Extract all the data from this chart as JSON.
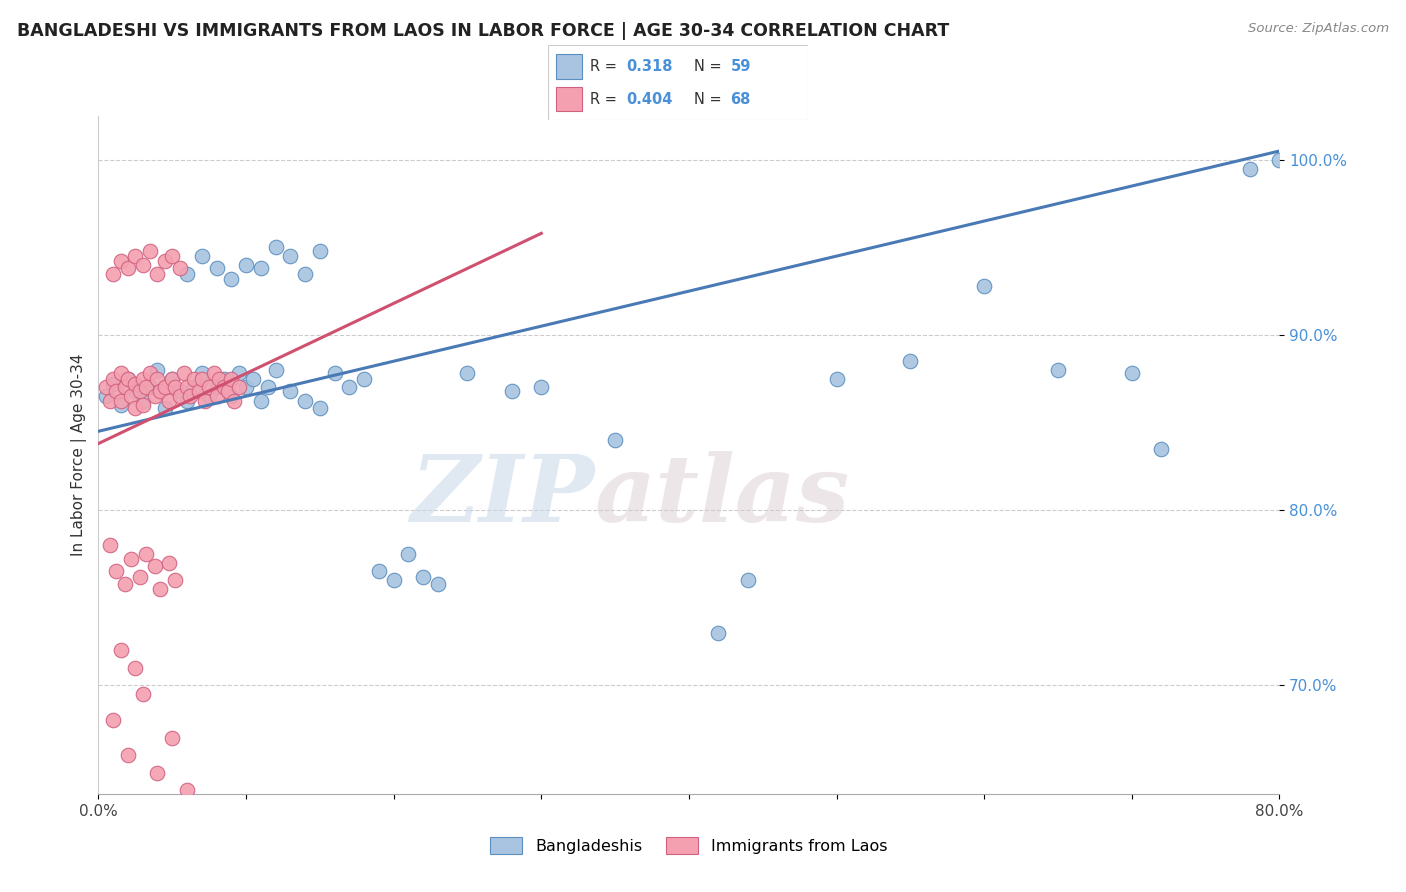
{
  "title": "BANGLADESHI VS IMMIGRANTS FROM LAOS IN LABOR FORCE | AGE 30-34 CORRELATION CHART",
  "source_text": "Source: ZipAtlas.com",
  "ylabel": "In Labor Force | Age 30-34",
  "xlim": [
    0.0,
    0.8
  ],
  "ylim": [
    0.638,
    1.025
  ],
  "xticks": [
    0.0,
    0.1,
    0.2,
    0.3,
    0.4,
    0.5,
    0.6,
    0.7,
    0.8
  ],
  "xticklabels": [
    "0.0%",
    "",
    "",
    "",
    "",
    "",
    "",
    "",
    "80.0%"
  ],
  "yticks": [
    0.7,
    0.8,
    0.9,
    1.0
  ],
  "yticklabels": [
    "70.0%",
    "80.0%",
    "90.0%",
    "100.0%"
  ],
  "R_blue": 0.318,
  "N_blue": 59,
  "R_pink": 0.404,
  "N_pink": 68,
  "blue_color": "#a8c4e0",
  "pink_color": "#f4a0b0",
  "blue_edge_color": "#5a8fc0",
  "pink_edge_color": "#d06080",
  "blue_line_color": "#4a7ab5",
  "pink_line_color": "#d05070",
  "legend_label_blue": "Bangladeshis",
  "legend_label_pink": "Immigrants from Laos",
  "watermark_zip": "ZIP",
  "watermark_atlas": "atlas",
  "blue_scatter_x": [
    0.005,
    0.01,
    0.015,
    0.02,
    0.025,
    0.03,
    0.035,
    0.04,
    0.045,
    0.05,
    0.055,
    0.06,
    0.065,
    0.07,
    0.075,
    0.08,
    0.085,
    0.09,
    0.095,
    0.1,
    0.105,
    0.11,
    0.115,
    0.12,
    0.13,
    0.14,
    0.15,
    0.16,
    0.17,
    0.18,
    0.19,
    0.2,
    0.21,
    0.22,
    0.23,
    0.25,
    0.28,
    0.3,
    0.35,
    0.42,
    0.44,
    0.5,
    0.55,
    0.6,
    0.65,
    0.7,
    0.72,
    0.78,
    0.8,
    0.06,
    0.07,
    0.08,
    0.09,
    0.1,
    0.11,
    0.12,
    0.13,
    0.14,
    0.15
  ],
  "blue_scatter_y": [
    0.865,
    0.872,
    0.86,
    0.875,
    0.868,
    0.862,
    0.87,
    0.88,
    0.858,
    0.875,
    0.868,
    0.862,
    0.87,
    0.878,
    0.865,
    0.87,
    0.875,
    0.865,
    0.878,
    0.87,
    0.875,
    0.862,
    0.87,
    0.88,
    0.868,
    0.862,
    0.858,
    0.878,
    0.87,
    0.875,
    0.765,
    0.76,
    0.775,
    0.762,
    0.758,
    0.878,
    0.868,
    0.87,
    0.84,
    0.73,
    0.76,
    0.875,
    0.885,
    0.928,
    0.88,
    0.878,
    0.835,
    0.995,
    1.0,
    0.935,
    0.945,
    0.938,
    0.932,
    0.94,
    0.938,
    0.95,
    0.945,
    0.935,
    0.948
  ],
  "pink_scatter_x": [
    0.005,
    0.008,
    0.01,
    0.012,
    0.015,
    0.015,
    0.018,
    0.02,
    0.022,
    0.025,
    0.025,
    0.028,
    0.03,
    0.03,
    0.032,
    0.035,
    0.038,
    0.04,
    0.042,
    0.045,
    0.048,
    0.05,
    0.052,
    0.055,
    0.058,
    0.06,
    0.062,
    0.065,
    0.068,
    0.07,
    0.072,
    0.075,
    0.078,
    0.08,
    0.082,
    0.085,
    0.088,
    0.09,
    0.092,
    0.095,
    0.01,
    0.015,
    0.02,
    0.025,
    0.03,
    0.035,
    0.04,
    0.045,
    0.05,
    0.055,
    0.008,
    0.012,
    0.018,
    0.022,
    0.028,
    0.032,
    0.038,
    0.042,
    0.048,
    0.052,
    0.01,
    0.02,
    0.03,
    0.04,
    0.05,
    0.06,
    0.015,
    0.025
  ],
  "pink_scatter_y": [
    0.87,
    0.862,
    0.875,
    0.868,
    0.862,
    0.878,
    0.87,
    0.875,
    0.865,
    0.872,
    0.858,
    0.868,
    0.875,
    0.86,
    0.87,
    0.878,
    0.865,
    0.875,
    0.868,
    0.87,
    0.862,
    0.875,
    0.87,
    0.865,
    0.878,
    0.87,
    0.865,
    0.875,
    0.868,
    0.875,
    0.862,
    0.87,
    0.878,
    0.865,
    0.875,
    0.87,
    0.868,
    0.875,
    0.862,
    0.87,
    0.935,
    0.942,
    0.938,
    0.945,
    0.94,
    0.948,
    0.935,
    0.942,
    0.945,
    0.938,
    0.78,
    0.765,
    0.758,
    0.772,
    0.762,
    0.775,
    0.768,
    0.755,
    0.77,
    0.76,
    0.68,
    0.66,
    0.695,
    0.65,
    0.67,
    0.64,
    0.72,
    0.71
  ]
}
